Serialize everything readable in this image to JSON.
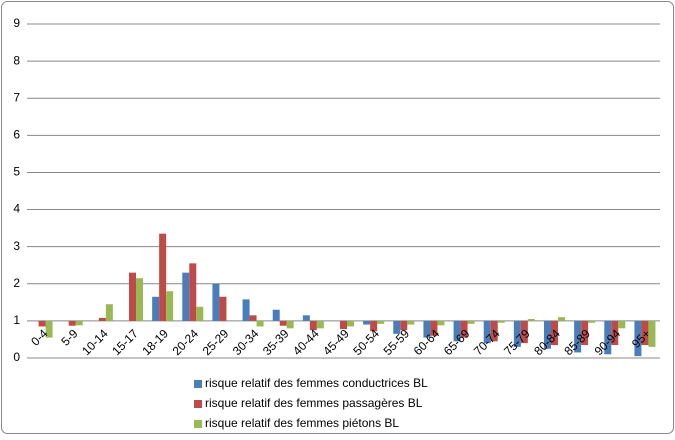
{
  "chart_data": {
    "type": "bar",
    "categories": [
      "0-4",
      "5-9",
      "10-14",
      "15-17",
      "18-19",
      "20-24",
      "25-29",
      "30-34",
      "35-39",
      "40-44",
      "45-49",
      "50-54",
      "55-59",
      "60-64",
      "65-69",
      "70-74",
      "75-79",
      "80-84",
      "85-89",
      "90-94",
      "95+"
    ],
    "series": [
      {
        "name": "risque relatif des femmes conductrices BL",
        "color": "#4a7ebb",
        "values": [
          1,
          1,
          1,
          1,
          1.65,
          2.3,
          2.0,
          1.58,
          1.3,
          1.15,
          1,
          0.9,
          0.65,
          0.55,
          0.45,
          0.4,
          0.3,
          0.25,
          0.15,
          0.1,
          0.05
        ]
      },
      {
        "name": "risque relatif des femmes passagères BL",
        "color": "#be4b48",
        "values": [
          0.85,
          0.87,
          1.08,
          2.3,
          3.35,
          2.55,
          1.65,
          1.15,
          0.87,
          0.75,
          0.78,
          0.72,
          0.75,
          0.6,
          0.55,
          0.45,
          0.4,
          0.35,
          0.35,
          0.35,
          0.35
        ]
      },
      {
        "name": "risque relatif des femmes piétons BL",
        "color": "#98b954",
        "values": [
          0.55,
          0.88,
          1.45,
          2.15,
          1.8,
          1.38,
          1.0,
          0.85,
          0.8,
          0.8,
          0.85,
          0.92,
          0.9,
          0.88,
          0.92,
          0.95,
          1.05,
          1.1,
          0.95,
          0.8,
          0.3
        ]
      }
    ],
    "baseline": 1,
    "ylim": [
      0,
      9
    ],
    "yticks": [
      0,
      1,
      2,
      3,
      4,
      5,
      6,
      7,
      8,
      9
    ],
    "grid": true
  }
}
